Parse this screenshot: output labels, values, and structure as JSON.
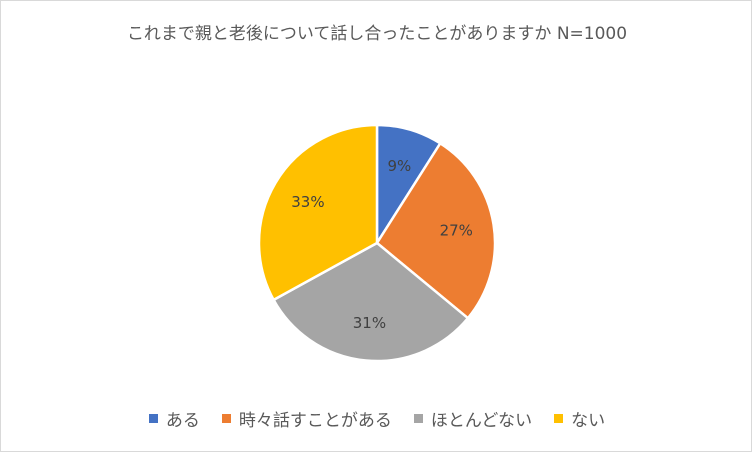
{
  "chart_data": {
    "type": "pie",
    "title": "これまで親と老後について話し合ったことがありますか N=1000",
    "categories": [
      "ある",
      "時々話すことがある",
      "ほとんどない",
      "ない"
    ],
    "values": [
      9,
      27,
      31,
      33
    ],
    "labels": [
      "9%",
      "27%",
      "31%",
      "33%"
    ],
    "colors": [
      "#4472C4",
      "#ED7D31",
      "#A5A5A5",
      "#FFC000"
    ],
    "legend_position": "bottom"
  }
}
